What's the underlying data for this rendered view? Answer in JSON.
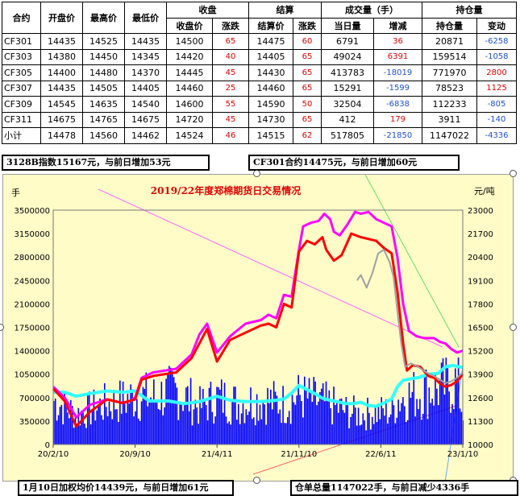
{
  "table": {
    "group_headers": [
      "收盘",
      "结算",
      "成交量（手）",
      "持仓量"
    ],
    "columns": [
      "合约",
      "开盘价",
      "最高价",
      "最低价",
      "收盘价",
      "涨跌",
      "结算价",
      "涨跌",
      "当日量",
      "增减",
      "持仓量",
      "变动"
    ],
    "rows": [
      [
        "CF301",
        "14435",
        "14525",
        "14435",
        "14500",
        "65",
        "14475",
        "60",
        "6791",
        "36",
        "20871",
        "-6258"
      ],
      [
        "CF303",
        "14380",
        "14450",
        "14345",
        "14420",
        "40",
        "14405",
        "65",
        "49024",
        "6391",
        "159514",
        "-1058"
      ],
      [
        "CF305",
        "14400",
        "14480",
        "14370",
        "14445",
        "45",
        "14430",
        "65",
        "413783",
        "-18019",
        "771970",
        "2800"
      ],
      [
        "CF307",
        "14435",
        "14505",
        "14405",
        "14460",
        "25",
        "14460",
        "65",
        "15291",
        "-1599",
        "78523",
        "1125"
      ],
      [
        "CF309",
        "14545",
        "14635",
        "14540",
        "14600",
        "55",
        "14590",
        "50",
        "32504",
        "-6838",
        "112233",
        "-805"
      ],
      [
        "CF311",
        "14675",
        "14765",
        "14675",
        "14720",
        "45",
        "14730",
        "65",
        "412",
        "179",
        "3911",
        "-140"
      ],
      [
        "小计",
        "14478",
        "14560",
        "14462",
        "14524",
        "46",
        "14515",
        "62",
        "517805",
        "-21850",
        "1147022",
        "-4336"
      ]
    ]
  },
  "notes": {
    "index_note": "3128B指数15167元，与前日增加53元",
    "contract_note": "CF301合约14475元，与前日增加60元",
    "weighted_note": "1月10日加权均价14439元，与前日增加61元",
    "warehouse_note": "仓单总量1147022手，与前日减少4336手"
  },
  "colors": {
    "volume_bar": "#0000ff",
    "series_magenta": "#ff00ff",
    "series_red": "#ff0000",
    "series_gray": "#a0a0a0",
    "series_cyan": "#33ffff",
    "title_red": "#e00000",
    "positive_red": "#e00000",
    "negative_blue": "#1f4fd6",
    "chart_bg": "#fffcc8"
  },
  "chart_data": {
    "type": "line",
    "title": "2019/22年度郑棉期货日交易情况",
    "left_unit": "手",
    "right_unit": "元/吨",
    "left_ticks": [
      0,
      350000,
      700000,
      1050000,
      1400000,
      1750000,
      2100000,
      2450000,
      2800000,
      3150000,
      3500000
    ],
    "right_ticks": [
      10000,
      11300,
      12600,
      13900,
      15200,
      16500,
      17800,
      19100,
      20400,
      21700,
      23000
    ],
    "left_range": [
      0,
      3500000
    ],
    "right_range": [
      10000,
      23000
    ],
    "x_labels": [
      "20/2/10",
      "20/9/10",
      "21/4/11",
      "21/11/10",
      "22/6/11",
      "23/1/10"
    ],
    "x_range": [
      0,
      1065
    ],
    "x_label_pos": [
      0,
      213,
      426,
      639,
      852,
      1065
    ],
    "series": [
      {
        "key": "magenta_price",
        "axis": "right",
        "points": [
          [
            0,
            13200
          ],
          [
            30,
            12600
          ],
          [
            60,
            11500
          ],
          [
            95,
            12200
          ],
          [
            140,
            12500
          ],
          [
            180,
            12300
          ],
          [
            200,
            12400
          ],
          [
            213,
            12600
          ],
          [
            230,
            13700
          ],
          [
            260,
            14000
          ],
          [
            320,
            14200
          ],
          [
            360,
            15000
          ],
          [
            380,
            16100
          ],
          [
            400,
            16700
          ],
          [
            426,
            15100
          ],
          [
            460,
            16000
          ],
          [
            500,
            16700
          ],
          [
            540,
            16900
          ],
          [
            560,
            17200
          ],
          [
            580,
            17000
          ],
          [
            600,
            18300
          ],
          [
            620,
            18200
          ],
          [
            639,
            20800
          ],
          [
            650,
            22100
          ],
          [
            670,
            22300
          ],
          [
            690,
            22400
          ],
          [
            705,
            22800
          ],
          [
            720,
            22500
          ],
          [
            730,
            21800
          ],
          [
            745,
            21600
          ],
          [
            765,
            22200
          ],
          [
            785,
            22900
          ],
          [
            800,
            22800
          ],
          [
            820,
            22900
          ],
          [
            840,
            22500
          ],
          [
            860,
            22300
          ],
          [
            880,
            22100
          ],
          [
            895,
            20400
          ],
          [
            910,
            17800
          ],
          [
            925,
            16300
          ],
          [
            945,
            16000
          ],
          [
            965,
            15900
          ],
          [
            990,
            15900
          ],
          [
            1005,
            15700
          ],
          [
            1020,
            15600
          ],
          [
            1035,
            15300
          ],
          [
            1050,
            15100
          ],
          [
            1065,
            15200
          ]
        ]
      },
      {
        "key": "red_price",
        "axis": "right",
        "points": [
          [
            0,
            13100
          ],
          [
            30,
            12400
          ],
          [
            60,
            11000
          ],
          [
            95,
            11800
          ],
          [
            140,
            12500
          ],
          [
            180,
            12300
          ],
          [
            213,
            12500
          ],
          [
            230,
            13600
          ],
          [
            260,
            13800
          ],
          [
            320,
            14000
          ],
          [
            360,
            14800
          ],
          [
            380,
            15600
          ],
          [
            400,
            16400
          ],
          [
            426,
            14600
          ],
          [
            460,
            15800
          ],
          [
            500,
            16200
          ],
          [
            540,
            16600
          ],
          [
            560,
            16700
          ],
          [
            580,
            16500
          ],
          [
            600,
            17800
          ],
          [
            620,
            17600
          ],
          [
            639,
            20700
          ],
          [
            660,
            21300
          ],
          [
            680,
            21100
          ],
          [
            700,
            21500
          ],
          [
            710,
            20800
          ],
          [
            730,
            20200
          ],
          [
            750,
            20500
          ],
          [
            775,
            21700
          ],
          [
            800,
            21500
          ],
          [
            820,
            21400
          ],
          [
            840,
            21300
          ],
          [
            860,
            20900
          ],
          [
            880,
            20600
          ],
          [
            895,
            18500
          ],
          [
            910,
            15600
          ],
          [
            920,
            14100
          ],
          [
            935,
            14400
          ],
          [
            955,
            14300
          ],
          [
            975,
            13800
          ],
          [
            990,
            13700
          ],
          [
            1005,
            13400
          ],
          [
            1020,
            13200
          ],
          [
            1035,
            13300
          ],
          [
            1050,
            13500
          ],
          [
            1065,
            13900
          ]
        ]
      },
      {
        "key": "gray_price",
        "axis": "right",
        "points": [
          [
            790,
            19100
          ],
          [
            800,
            19400
          ],
          [
            815,
            18700
          ],
          [
            830,
            19500
          ],
          [
            845,
            20600
          ],
          [
            860,
            20800
          ],
          [
            875,
            20100
          ],
          [
            885,
            19300
          ],
          [
            895,
            17400
          ],
          [
            905,
            15600
          ],
          [
            915,
            14300
          ],
          [
            930,
            14500
          ],
          [
            950,
            14300
          ],
          [
            970,
            14000
          ],
          [
            990,
            13800
          ],
          [
            1005,
            13600
          ],
          [
            1020,
            13400
          ],
          [
            1035,
            13500
          ],
          [
            1050,
            13700
          ],
          [
            1065,
            14000
          ]
        ]
      },
      {
        "key": "cyan_open_interest",
        "axis": "left",
        "points": [
          [
            0,
            780000
          ],
          [
            30,
            780000
          ],
          [
            60,
            720000
          ],
          [
            95,
            760000
          ],
          [
            140,
            800000
          ],
          [
            180,
            780000
          ],
          [
            213,
            800000
          ],
          [
            250,
            650000
          ],
          [
            300,
            650000
          ],
          [
            340,
            610000
          ],
          [
            380,
            640000
          ],
          [
            426,
            720000
          ],
          [
            460,
            660000
          ],
          [
            500,
            640000
          ],
          [
            540,
            640000
          ],
          [
            580,
            660000
          ],
          [
            600,
            680000
          ],
          [
            620,
            770000
          ],
          [
            639,
            880000
          ],
          [
            660,
            820000
          ],
          [
            680,
            760000
          ],
          [
            700,
            690000
          ],
          [
            720,
            660000
          ],
          [
            740,
            640000
          ],
          [
            760,
            610000
          ],
          [
            780,
            610000
          ],
          [
            800,
            630000
          ],
          [
            820,
            580000
          ],
          [
            840,
            570000
          ],
          [
            860,
            620000
          ],
          [
            880,
            680000
          ],
          [
            895,
            860000
          ],
          [
            910,
            960000
          ],
          [
            930,
            980000
          ],
          [
            950,
            1000000
          ],
          [
            975,
            1050000
          ],
          [
            1000,
            1060000
          ],
          [
            1020,
            1160000
          ],
          [
            1040,
            1180000
          ],
          [
            1065,
            1150000
          ]
        ]
      },
      {
        "key": "blue_volume",
        "axis": "left",
        "kind": "bars",
        "anchors": [
          [
            0,
            820000
          ],
          [
            60,
            560000
          ],
          [
            120,
            720000
          ],
          [
            180,
            820000
          ],
          [
            213,
            900000
          ],
          [
            260,
            880000
          ],
          [
            320,
            1000000
          ],
          [
            380,
            700000
          ],
          [
            426,
            880000
          ],
          [
            480,
            760000
          ],
          [
            540,
            840000
          ],
          [
            600,
            760000
          ],
          [
            639,
            900000
          ],
          [
            700,
            780000
          ],
          [
            760,
            620000
          ],
          [
            800,
            560000
          ],
          [
            840,
            600000
          ],
          [
            880,
            620000
          ],
          [
            895,
            850000
          ],
          [
            930,
            920000
          ],
          [
            980,
            1030000
          ],
          [
            1020,
            1080000
          ],
          [
            1050,
            1150000
          ],
          [
            1065,
            520000
          ]
        ]
      }
    ]
  }
}
